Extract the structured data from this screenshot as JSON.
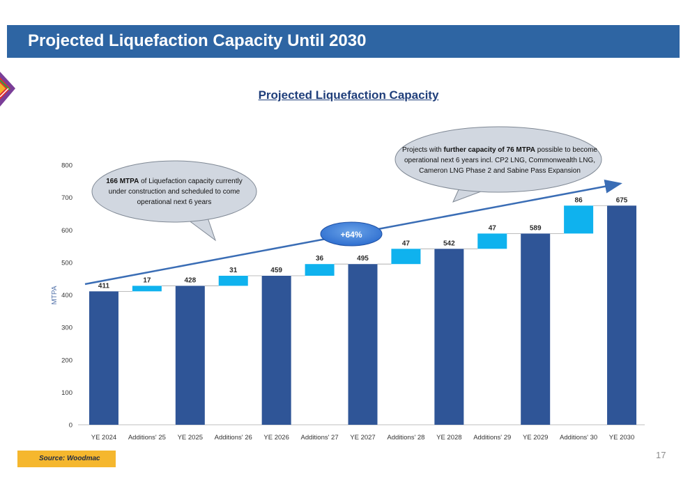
{
  "page": {
    "title": "Projected Liquefaction Capacity Until 2030",
    "page_number": "17",
    "source": "Source: Woodmac",
    "colors": {
      "title_bar": "#2e65a3",
      "total_bar": "#2f5597",
      "addition_bar": "#0fb2ee",
      "source_box": "#f5b72e"
    }
  },
  "chart_data": {
    "type": "bar",
    "subtype": "waterfall",
    "title": "Projected Liquefaction Capacity",
    "ylabel": "MTPA",
    "xlabel": "",
    "ylim": [
      0,
      800
    ],
    "yticks": [
      0,
      100,
      200,
      300,
      400,
      500,
      600,
      700,
      800
    ],
    "grid": false,
    "categories": [
      "YE 2024",
      "Additions' 25",
      "YE 2025",
      "Additions' 26",
      "YE 2026",
      "Additions' 27",
      "YE 2027",
      "Additions' 28",
      "YE 2028",
      "Additions' 29",
      "YE 2029",
      "Additions' 30",
      "YE 2030"
    ],
    "bars": [
      {
        "kind": "total",
        "value": 411
      },
      {
        "kind": "addition",
        "value": 17,
        "base": 411
      },
      {
        "kind": "total",
        "value": 428
      },
      {
        "kind": "addition",
        "value": 31,
        "base": 428
      },
      {
        "kind": "total",
        "value": 459
      },
      {
        "kind": "addition",
        "value": 36,
        "base": 459
      },
      {
        "kind": "total",
        "value": 495
      },
      {
        "kind": "addition",
        "value": 47,
        "base": 495
      },
      {
        "kind": "total",
        "value": 542
      },
      {
        "kind": "addition",
        "value": 47,
        "base": 542
      },
      {
        "kind": "total",
        "value": 589
      },
      {
        "kind": "addition",
        "value": 86,
        "base": 589
      },
      {
        "kind": "total",
        "value": 675
      }
    ],
    "annotations": {
      "growth_label": "+64%",
      "callout_left": {
        "bold": "166 MTPA",
        "line1_rest": " of Liquefaction capacity currently",
        "line2": "under construction and scheduled to come",
        "line3": "operational next 6 years"
      },
      "callout_right": {
        "line1_pre": "Projects with ",
        "bold": "further capacity of 76 MTPA",
        "line1_post": " possible to become",
        "line2": "operational next 6 years incl. CP2 LNG, Commonwealth LNG,",
        "line3": "Cameron LNG Phase 2 and Sabine Pass Expansion"
      }
    }
  }
}
